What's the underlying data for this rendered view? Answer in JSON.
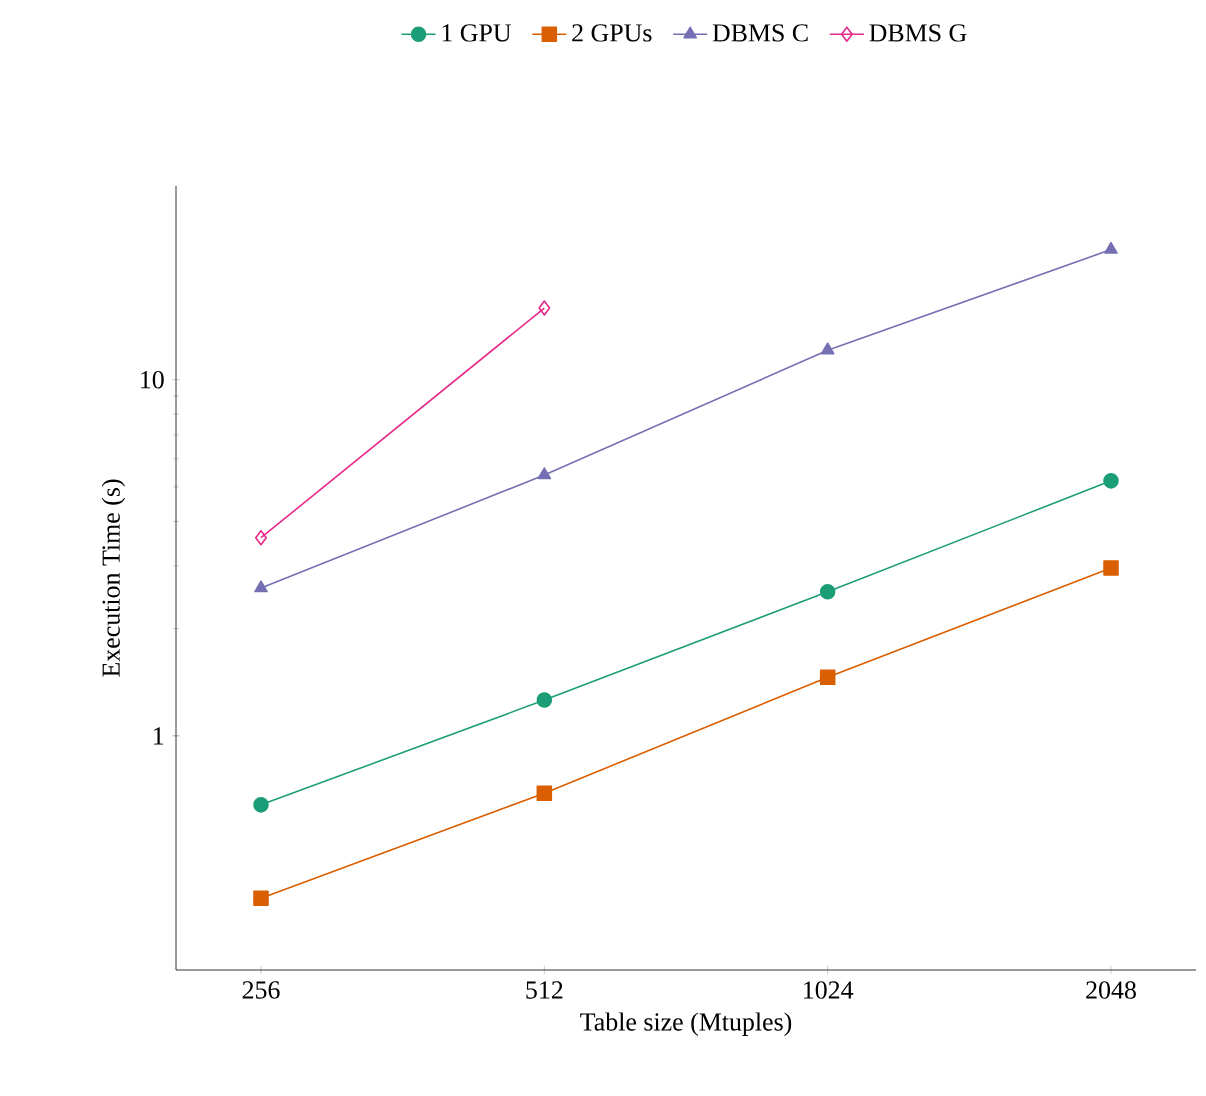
{
  "chart_data": {
    "type": "line",
    "xlabel": "Table size (Mtuples)",
    "ylabel": "Execution Time (s)",
    "categories": [
      "256",
      "512",
      "1024",
      "2048"
    ],
    "series": [
      {
        "name": "1 GPU",
        "color": "#1b9e77",
        "marker": "circle",
        "values": [
          0.64,
          1.26,
          2.54,
          5.2
        ]
      },
      {
        "name": "2 GPUs",
        "color": "#d95f02",
        "marker": "square",
        "values": [
          0.35,
          0.69,
          1.46,
          2.96
        ]
      },
      {
        "name": "DBMS C",
        "color": "#7570b3",
        "marker": "triangle",
        "values": [
          2.6,
          5.4,
          12.1,
          23.2
        ]
      },
      {
        "name": "DBMS G",
        "color": "#e7298a",
        "marker": "diamond",
        "values": [
          3.6,
          15.9,
          null,
          null
        ]
      }
    ],
    "log": "y",
    "ylim": [
      0.22,
      35
    ],
    "yticks": [
      1,
      10
    ],
    "legend": "top",
    "line_style": "solid"
  }
}
